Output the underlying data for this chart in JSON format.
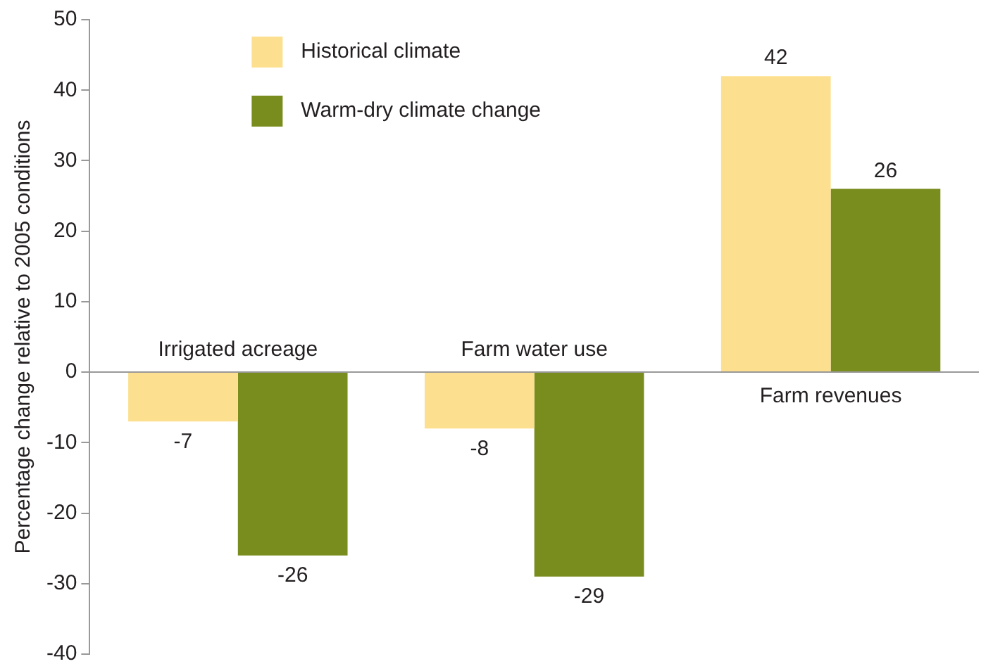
{
  "chart_data": {
    "type": "bar",
    "ylabel": "Percentage change relative to 2005 conditions",
    "categories": [
      "Irrigated acreage",
      "Farm water use",
      "Farm revenues"
    ],
    "series": [
      {
        "name": "Historical climate",
        "color": "#fde08f",
        "values": [
          -7,
          -8,
          42
        ]
      },
      {
        "name": "Warm-dry climate change",
        "color": "#788d1d",
        "values": [
          -26,
          -29,
          26
        ]
      }
    ],
    "ylim": [
      -40,
      50
    ],
    "yticks": [
      -40,
      -30,
      -20,
      -10,
      0,
      10,
      20,
      30,
      40,
      50
    ],
    "grid": false,
    "legend": "top left",
    "data_labels": true
  }
}
